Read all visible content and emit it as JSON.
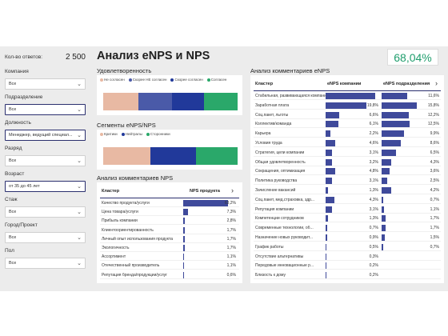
{
  "sidebar": {
    "respondents_label": "Кол-во ответов:",
    "respondents_value": "2 500",
    "filters": [
      {
        "label": "Компания",
        "value": "Все",
        "active": false
      },
      {
        "label": "Подразделение",
        "value": "Все",
        "active": true
      },
      {
        "label": "Должность",
        "value": "Менеджер, ведущий специал...",
        "active": true
      },
      {
        "label": "Разряд",
        "value": "Все",
        "active": false
      },
      {
        "label": "Возраст",
        "value": "от 35 до 45 лет",
        "active": true
      },
      {
        "label": "Стаж",
        "value": "Все",
        "active": false
      },
      {
        "label": "Город/Проект",
        "value": "Все",
        "active": false
      },
      {
        "label": "Пол",
        "value": "Все",
        "active": false
      }
    ]
  },
  "header": {
    "title": "Анализ eNPS и NPS",
    "enps_value": "68,04%"
  },
  "satisfaction": {
    "title": "Удовлетворенность",
    "legend": [
      "Не согласен",
      "Скорее НЕ согласен",
      "Скорее согласен",
      "Согласен"
    ],
    "colors": [
      "#e8b9a3",
      "#4a5aa8",
      "#21399a",
      "#2aa86a"
    ],
    "shares": [
      0.26,
      0.25,
      0.24,
      0.25
    ]
  },
  "segments": {
    "title": "Сегменты eNPS/NPS",
    "legend": [
      "Критики",
      "Нейтралы",
      "Сторонники"
    ],
    "colors": [
      "#e8b9a3",
      "#21399a",
      "#2aa86a"
    ],
    "shares": [
      0.35,
      0.34,
      0.31
    ]
  },
  "nps_comments": {
    "title": "Анализ комментариев NPS",
    "col_cluster": "Кластер",
    "col_value": "NPS продукта",
    "rows": [
      {
        "name": "Качество продукта/услуги",
        "value": "63,2%",
        "num": 63.2
      },
      {
        "name": "Цена товара/услуги",
        "value": "7,3%",
        "num": 7.3
      },
      {
        "name": "Прибыль компании",
        "value": "2,8%",
        "num": 2.8
      },
      {
        "name": "Клиентоориентированность",
        "value": "1,7%",
        "num": 1.7
      },
      {
        "name": "Личный опыт использования продукта",
        "value": "1,7%",
        "num": 1.7
      },
      {
        "name": "Экологичность",
        "value": "1,7%",
        "num": 1.7
      },
      {
        "name": "Ассортимент",
        "value": "1,1%",
        "num": 1.1
      },
      {
        "name": "Отечественный производитель",
        "value": "1,1%",
        "num": 1.1
      },
      {
        "name": "Репутация бренда/продукции/услуг",
        "value": "0,6%",
        "num": 0.6
      }
    ]
  },
  "enps_comments": {
    "title": "Анализ комментариев eNPS",
    "col_cluster": "Кластер",
    "col_company": "eNPS компании",
    "col_division": "eNPS подразделения",
    "rows": [
      {
        "name": "Стабильная, развивающаяся компания",
        "company": "",
        "division": "11,6%",
        "c": 24.0,
        "d": 11.6
      },
      {
        "name": "Заработная плата",
        "company": "19,8%",
        "division": "15,8%",
        "c": 19.8,
        "d": 15.8
      },
      {
        "name": "Соц.пакет, льготы",
        "company": "6,6%",
        "division": "12,2%",
        "c": 6.6,
        "d": 12.2
      },
      {
        "name": "Коллектив/команда",
        "company": "6,1%",
        "division": "12,5%",
        "c": 6.1,
        "d": 12.5
      },
      {
        "name": "Карьера",
        "company": "2,2%",
        "division": "9,9%",
        "c": 2.2,
        "d": 9.9
      },
      {
        "name": "Условия труда",
        "company": "4,6%",
        "division": "8,6%",
        "c": 4.6,
        "d": 8.6
      },
      {
        "name": "Стратегия, цели компании",
        "company": "3,1%",
        "division": "6,5%",
        "c": 3.1,
        "d": 6.5
      },
      {
        "name": "Общая удовлетворенность",
        "company": "3,2%",
        "division": "4,3%",
        "c": 3.2,
        "d": 4.3
      },
      {
        "name": "Сокращения, оптимизация",
        "company": "4,8%",
        "division": "3,6%",
        "c": 4.8,
        "d": 3.6
      },
      {
        "name": "Политика руководства",
        "company": "3,1%",
        "division": "2,5%",
        "c": 3.1,
        "d": 2.5
      },
      {
        "name": "Зачисление вакансий",
        "company": "1,3%",
        "division": "4,2%",
        "c": 1.3,
        "d": 4.2
      },
      {
        "name": "Соц.пакет, мед.страховка, здр...",
        "company": "4,3%",
        "division": "0,7%",
        "c": 4.3,
        "d": 0.7
      },
      {
        "name": "Репутация компании",
        "company": "3,1%",
        "division": "1,1%",
        "c": 3.1,
        "d": 1.1
      },
      {
        "name": "Компетенции сотрудников",
        "company": "1,3%",
        "division": "1,7%",
        "c": 1.3,
        "d": 1.7
      },
      {
        "name": "Современные технологии, об...",
        "company": "0,7%",
        "division": "1,7%",
        "c": 0.7,
        "d": 1.7
      },
      {
        "name": "Назначение новых руководит...",
        "company": "0,9%",
        "division": "1,5%",
        "c": 0.9,
        "d": 1.5
      },
      {
        "name": "График работы",
        "company": "0,5%",
        "division": "0,7%",
        "c": 0.5,
        "d": 0.7
      },
      {
        "name": "Отсутствие альтернативы",
        "company": "0,3%",
        "division": "",
        "c": 0.3,
        "d": 0
      },
      {
        "name": "Передовые инновационные р...",
        "company": "0,2%",
        "division": "",
        "c": 0.2,
        "d": 0
      },
      {
        "name": "Близость к дому",
        "company": "0,2%",
        "division": "",
        "c": 0.2,
        "d": 0
      }
    ]
  }
}
